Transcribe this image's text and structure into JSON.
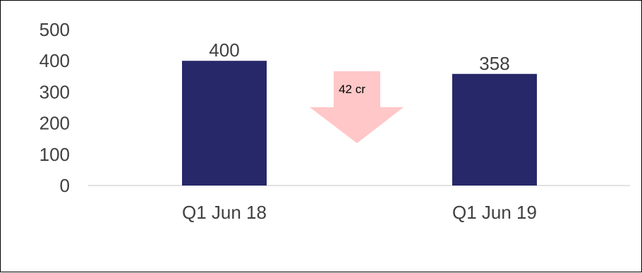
{
  "chart_data": {
    "type": "bar",
    "categories": [
      "Q1 Jun 18",
      "Q1 Jun 19"
    ],
    "values": [
      400,
      358
    ],
    "data_labels": [
      "400",
      "358"
    ],
    "ylim": [
      0,
      500
    ],
    "yticks": [
      0,
      100,
      200,
      300,
      400,
      500
    ],
    "ytick_labels": [
      "0",
      "100",
      "200",
      "300",
      "400",
      "500"
    ],
    "grid": false,
    "legend": "none",
    "bar_color": "#262869",
    "axis_color": "#d9d9d9",
    "annotation": {
      "type": "down-arrow",
      "label": "42 cr",
      "color": "#ffc7c7"
    }
  }
}
